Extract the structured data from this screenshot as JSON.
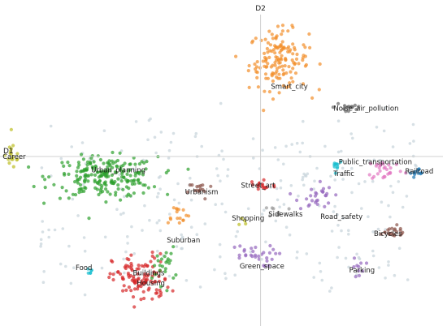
{
  "chart_data": {
    "type": "scatter",
    "title": "",
    "xlabel": "D1",
    "ylabel": "D2",
    "xlim": [
      -10,
      7
    ],
    "ylim": [
      -6.5,
      6
    ],
    "grid": false,
    "legend": "none",
    "background_color": "#c9d5dc",
    "clusters": [
      {
        "label": "Smart_city",
        "color": "#f28e2b",
        "center": [
          0.7,
          3.7
        ],
        "spread": [
          0.95,
          0.95
        ],
        "count": 150,
        "label_at": [
          0.4,
          2.6
        ]
      },
      {
        "label": "Noise_air_pollution",
        "color": "#666666",
        "center": [
          3.4,
          1.9
        ],
        "spread": [
          0.5,
          0.25
        ],
        "count": 14,
        "label_at": [
          2.8,
          1.75
        ]
      },
      {
        "label": "Career",
        "color": "#bcbd22",
        "center": [
          -9.5,
          0.05
        ],
        "spread": [
          0.25,
          0.5
        ],
        "count": 18,
        "label_at": [
          -9.9,
          -0.1
        ]
      },
      {
        "label": "Urban_planning",
        "color": "#2ca02c",
        "center": [
          -6.0,
          -0.8
        ],
        "spread": [
          1.7,
          0.65
        ],
        "count": 220,
        "label_at": [
          -6.5,
          -0.6
        ]
      },
      {
        "label": "Urbanism",
        "color": "#8c564b",
        "center": [
          -2.3,
          -1.3
        ],
        "spread": [
          0.4,
          0.3
        ],
        "count": 16,
        "label_at": [
          -2.9,
          -1.45
        ]
      },
      {
        "label": "Street_art",
        "color": "#d62728",
        "center": [
          0.0,
          -1.1
        ],
        "spread": [
          0.5,
          0.25
        ],
        "count": 16,
        "label_at": [
          -0.75,
          -1.2
        ]
      },
      {
        "label": "Public_transportation",
        "color": "#e377c2",
        "center": [
          4.8,
          -0.5
        ],
        "spread": [
          0.6,
          0.35
        ],
        "count": 28,
        "label_at": [
          3.0,
          -0.3
        ]
      },
      {
        "label": "Traffic",
        "color": "#17becf",
        "center": [
          2.9,
          -0.3
        ],
        "spread": [
          0.2,
          0.2
        ],
        "count": 10,
        "label_at": [
          2.8,
          -0.75
        ]
      },
      {
        "label": "Railroad",
        "color": "#1f77b4",
        "center": [
          6.1,
          -0.65
        ],
        "spread": [
          0.3,
          0.15
        ],
        "count": 12,
        "label_at": [
          5.55,
          -0.65
        ]
      },
      {
        "label": "Road_safety",
        "color": "#9467bd",
        "center": [
          2.1,
          -1.5
        ],
        "spread": [
          0.55,
          0.5
        ],
        "count": 28,
        "label_at": [
          2.3,
          -2.4
        ]
      },
      {
        "label": "Shopping",
        "color": "#bcbd22",
        "center": [
          -0.6,
          -2.5
        ],
        "spread": [
          0.15,
          0.15
        ],
        "count": 4,
        "label_at": [
          -1.1,
          -2.45
        ]
      },
      {
        "label": "Sidewalks",
        "color": "#999999",
        "center": [
          0.7,
          -2.1
        ],
        "spread": [
          0.3,
          0.2
        ],
        "count": 8,
        "label_at": [
          0.3,
          -2.3
        ]
      },
      {
        "label": "Suburban",
        "color": "#f28e2b",
        "center": [
          -3.2,
          -2.2
        ],
        "spread": [
          0.4,
          0.3
        ],
        "count": 16,
        "label_at": [
          -3.6,
          -3.3
        ]
      },
      {
        "label": "Bicycles",
        "color": "#8c564b",
        "center": [
          5.0,
          -2.9
        ],
        "spread": [
          0.6,
          0.2
        ],
        "count": 22,
        "label_at": [
          4.35,
          -3.05
        ]
      },
      {
        "label": "Green_space",
        "color": "#9467bd",
        "center": [
          -0.4,
          -3.8
        ],
        "spread": [
          0.8,
          0.35
        ],
        "count": 30,
        "label_at": [
          -0.8,
          -4.3
        ]
      },
      {
        "label": "Parking",
        "color": "#9467bd",
        "center": [
          3.8,
          -4.3
        ],
        "spread": [
          0.2,
          0.35
        ],
        "count": 10,
        "label_at": [
          3.4,
          -4.45
        ]
      },
      {
        "label": "Food",
        "color": "#17becf",
        "center": [
          -6.6,
          -4.4
        ],
        "spread": [
          0.15,
          0.08
        ],
        "count": 6,
        "label_at": [
          -7.1,
          -4.35
        ]
      },
      {
        "label": "Buildings",
        "color": "#d62728",
        "center": [
          -4.6,
          -4.7
        ],
        "spread": [
          0.9,
          0.8
        ],
        "count": 110,
        "label_at": [
          -4.9,
          -4.55
        ]
      },
      {
        "label": "Housing",
        "color": "#2ca02c",
        "center": [
          -3.7,
          -4.2
        ],
        "spread": [
          0.35,
          0.6
        ],
        "count": 24,
        "label_at": [
          -4.75,
          -4.95
        ]
      }
    ]
  }
}
